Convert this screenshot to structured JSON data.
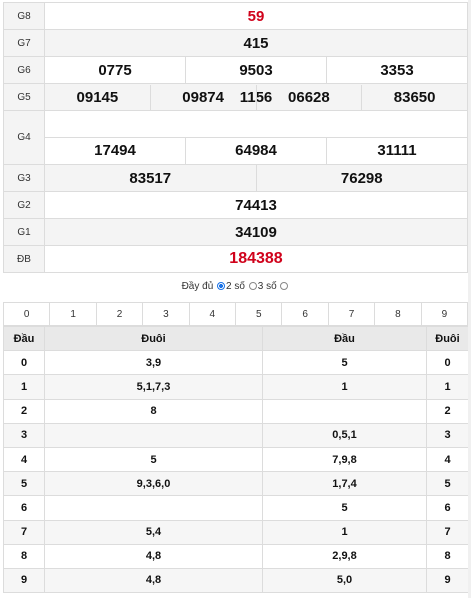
{
  "prizes": {
    "g8": {
      "label": "G8",
      "numbers": [
        "59"
      ]
    },
    "g7": {
      "label": "G7",
      "numbers": [
        "415"
      ]
    },
    "g6": {
      "label": "G6",
      "numbers": [
        "0775",
        "9503",
        "3353"
      ]
    },
    "g5": {
      "label": "G5",
      "numbers": [
        "1156"
      ]
    },
    "g4": {
      "label": "G4",
      "numbers": [
        "09145",
        "09874",
        "06628",
        "83650",
        "17494",
        "64984",
        "31111"
      ]
    },
    "g3": {
      "label": "G3",
      "numbers": [
        "83517",
        "76298"
      ]
    },
    "g2": {
      "label": "G2",
      "numbers": [
        "74413"
      ]
    },
    "g1": {
      "label": "G1",
      "numbers": [
        "34109"
      ]
    },
    "db": {
      "label": "ĐB",
      "numbers": [
        "184388"
      ]
    }
  },
  "options": {
    "full_label": "Đầy đủ",
    "two_label": "2 số",
    "three_label": "3 số",
    "selected": "2 số"
  },
  "digit_header": [
    "0",
    "1",
    "2",
    "3",
    "4",
    "5",
    "6",
    "7",
    "8",
    "9"
  ],
  "loto": {
    "headers": [
      "Đầu",
      "Đuôi",
      "Đầu",
      "Đuôi"
    ],
    "rows": [
      {
        "dau": "0",
        "duoi_list": "3,9",
        "dau_list": "5",
        "duoi": "0"
      },
      {
        "dau": "1",
        "duoi_list": "5,1,7,3",
        "dau_list": "1",
        "duoi": "1"
      },
      {
        "dau": "2",
        "duoi_list": "8",
        "dau_list": "",
        "duoi": "2"
      },
      {
        "dau": "3",
        "duoi_list": "",
        "dau_list": "0,5,1",
        "duoi": "3"
      },
      {
        "dau": "4",
        "duoi_list": "5",
        "dau_list": "7,9,8",
        "duoi": "4"
      },
      {
        "dau": "5",
        "duoi_list": "9,3,6,0",
        "dau_list": "1,7,4",
        "duoi": "5"
      },
      {
        "dau": "6",
        "duoi_list": "",
        "dau_list": "5",
        "duoi": "6"
      },
      {
        "dau": "7",
        "duoi_list": "5,4",
        "dau_list": "1",
        "duoi": "7"
      },
      {
        "dau": "8",
        "duoi_list": "4,8",
        "dau_list": "2,9,8",
        "duoi": "8"
      },
      {
        "dau": "9",
        "duoi_list": "4,8",
        "dau_list": "5,0",
        "duoi": "9"
      }
    ]
  },
  "colors": {
    "highlight": "#d0021b",
    "radio_active": "#1a73e8"
  }
}
